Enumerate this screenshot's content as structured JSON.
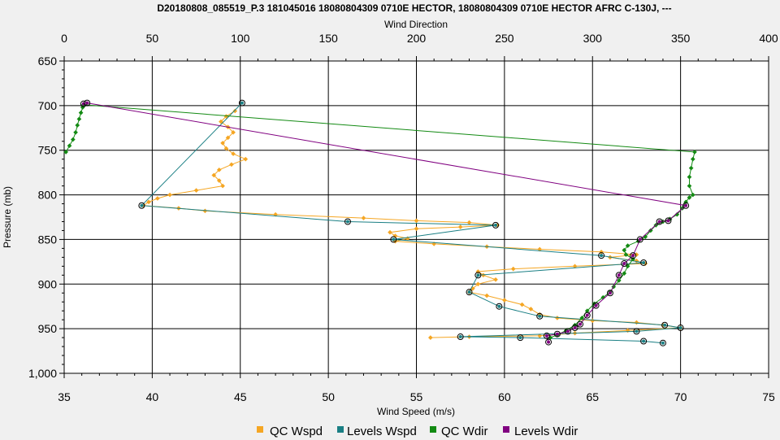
{
  "chart_data": {
    "type": "line",
    "title": "D20180808_085519_P.3 181045016 18080804309 0710E HECTOR, 18080804309 0710E HECTOR AFRC C-130J, ---",
    "xlabel": "Wind Speed (m/s)",
    "x2label": "Wind Direction",
    "ylabel": "Pressure (mb)",
    "xlim": [
      35,
      75
    ],
    "x2lim": [
      0,
      400
    ],
    "ylim": [
      650,
      1000
    ],
    "y_inverted": true,
    "grid": true,
    "legend_position": "bottom",
    "x_ticks": [
      "35",
      "40",
      "45",
      "50",
      "55",
      "60",
      "65",
      "70",
      "75"
    ],
    "x2_ticks": [
      "0",
      "50",
      "100",
      "150",
      "200",
      "250",
      "300",
      "350",
      "400"
    ],
    "y_ticks": [
      "650",
      "700",
      "750",
      "800",
      "850",
      "900",
      "950",
      "1,000"
    ],
    "series": [
      {
        "name": "QC Wspd",
        "axis": "bottom",
        "color": "#f5a623",
        "points": [
          [
            44.7,
            706
          ],
          [
            44.2,
            712
          ],
          [
            43.9,
            718
          ],
          [
            44.3,
            724
          ],
          [
            44.6,
            730
          ],
          [
            44.3,
            736
          ],
          [
            44.0,
            742
          ],
          [
            44.2,
            748
          ],
          [
            44.6,
            754
          ],
          [
            45.3,
            760
          ],
          [
            44.5,
            766
          ],
          [
            43.8,
            772
          ],
          [
            43.5,
            778
          ],
          [
            43.8,
            784
          ],
          [
            44.0,
            790
          ],
          [
            42.5,
            795
          ],
          [
            41.0,
            800
          ],
          [
            40.3,
            804
          ],
          [
            39.8,
            808
          ],
          [
            39.5,
            812
          ],
          [
            41.5,
            815
          ],
          [
            43.0,
            818
          ],
          [
            47.0,
            822
          ],
          [
            52.0,
            826
          ],
          [
            55.0,
            829
          ],
          [
            58.0,
            831
          ],
          [
            59.6,
            834
          ],
          [
            57.5,
            836
          ],
          [
            55.0,
            838
          ],
          [
            53.5,
            842
          ],
          [
            53.8,
            846
          ],
          [
            54.5,
            849
          ],
          [
            53.8,
            852
          ],
          [
            56.0,
            855
          ],
          [
            59.0,
            858
          ],
          [
            62.0,
            861
          ],
          [
            65.5,
            864
          ],
          [
            67.5,
            867
          ],
          [
            66.0,
            870
          ],
          [
            67.5,
            874
          ],
          [
            68.0,
            877
          ],
          [
            64.0,
            880
          ],
          [
            60.5,
            883
          ],
          [
            58.5,
            886
          ],
          [
            58.8,
            890
          ],
          [
            59.5,
            895
          ],
          [
            58.5,
            900
          ],
          [
            58.2,
            905
          ],
          [
            58.0,
            909
          ],
          [
            59.0,
            913
          ],
          [
            60.0,
            918
          ],
          [
            61.0,
            923
          ],
          [
            61.5,
            928
          ],
          [
            62.0,
            934
          ],
          [
            63.0,
            938
          ],
          [
            65.0,
            941
          ],
          [
            67.5,
            943
          ],
          [
            69.0,
            946
          ],
          [
            70.0,
            949
          ],
          [
            67.0,
            952
          ],
          [
            64.0,
            955
          ],
          [
            62.0,
            958
          ],
          [
            58.0,
            959
          ],
          [
            55.8,
            960
          ]
        ]
      },
      {
        "name": "Levels Wspd",
        "axis": "bottom",
        "color": "#1a7f84",
        "points": [
          [
            45.1,
            697
          ],
          [
            39.4,
            812
          ],
          [
            51.1,
            830
          ],
          [
            59.5,
            834
          ],
          [
            53.7,
            850
          ],
          [
            65.5,
            868
          ],
          [
            67.9,
            876
          ],
          [
            58.5,
            890
          ],
          [
            58.0,
            909
          ],
          [
            59.7,
            925
          ],
          [
            62.0,
            936
          ],
          [
            69.1,
            946
          ],
          [
            70.0,
            949
          ],
          [
            67.5,
            953
          ],
          [
            57.5,
            959
          ],
          [
            60.9,
            960
          ],
          [
            67.9,
            964
          ],
          [
            69.0,
            966
          ]
        ]
      },
      {
        "name": "QC Wdir",
        "axis": "top",
        "color": "#138a13",
        "points": [
          [
            1.0,
            752
          ],
          [
            3.0,
            745
          ],
          [
            5.0,
            738
          ],
          [
            6.5,
            730
          ],
          [
            7.5,
            722
          ],
          [
            8.5,
            715
          ],
          [
            9.5,
            708
          ],
          [
            10.5,
            702
          ],
          [
            11.0,
            699
          ],
          [
            358.0,
            752
          ],
          [
            357.0,
            760
          ],
          [
            356.0,
            770
          ],
          [
            355.0,
            780
          ],
          [
            355.0,
            790
          ],
          [
            357.0,
            800
          ],
          [
            355.0,
            803
          ],
          [
            353.0,
            808
          ],
          [
            351.0,
            815
          ],
          [
            348.0,
            822
          ],
          [
            344.0,
            827
          ],
          [
            340.0,
            830
          ],
          [
            336.0,
            834
          ],
          [
            333.0,
            840
          ],
          [
            330.0,
            847
          ],
          [
            326.0,
            852
          ],
          [
            320.0,
            857
          ],
          [
            318.0,
            862
          ],
          [
            319.0,
            867
          ],
          [
            323.0,
            872
          ],
          [
            320.0,
            880
          ],
          [
            318.0,
            888
          ],
          [
            315.0,
            896
          ],
          [
            312.0,
            903
          ],
          [
            310.0,
            909
          ],
          [
            306.0,
            915
          ],
          [
            301.0,
            922
          ],
          [
            297.0,
            930
          ],
          [
            294.0,
            938
          ],
          [
            290.0,
            946
          ],
          [
            285.0,
            952
          ],
          [
            280.0,
            957
          ],
          [
            276.0,
            960
          ]
        ]
      },
      {
        "name": "Levels Wdir",
        "axis": "top",
        "color": "#800080",
        "points": [
          [
            11.0,
            698
          ],
          [
            13.0,
            697
          ],
          [
            353.0,
            812
          ],
          [
            343.0,
            829
          ],
          [
            338.0,
            830
          ],
          [
            327.0,
            850
          ],
          [
            323.0,
            868
          ],
          [
            318.0,
            877
          ],
          [
            315.0,
            890
          ],
          [
            310.0,
            910
          ],
          [
            302.0,
            924
          ],
          [
            297.0,
            935
          ],
          [
            293.0,
            945
          ],
          [
            290.0,
            949
          ],
          [
            286.0,
            953
          ],
          [
            280.0,
            956
          ],
          [
            274.0,
            958
          ],
          [
            275.0,
            965
          ]
        ]
      }
    ]
  },
  "legend": {
    "items": [
      {
        "label": "QC Wspd",
        "color": "#f5a623"
      },
      {
        "label": "Levels Wspd",
        "color": "#1a7f84"
      },
      {
        "label": "QC Wdir",
        "color": "#138a13"
      },
      {
        "label": "Levels Wdir",
        "color": "#800080"
      }
    ]
  }
}
